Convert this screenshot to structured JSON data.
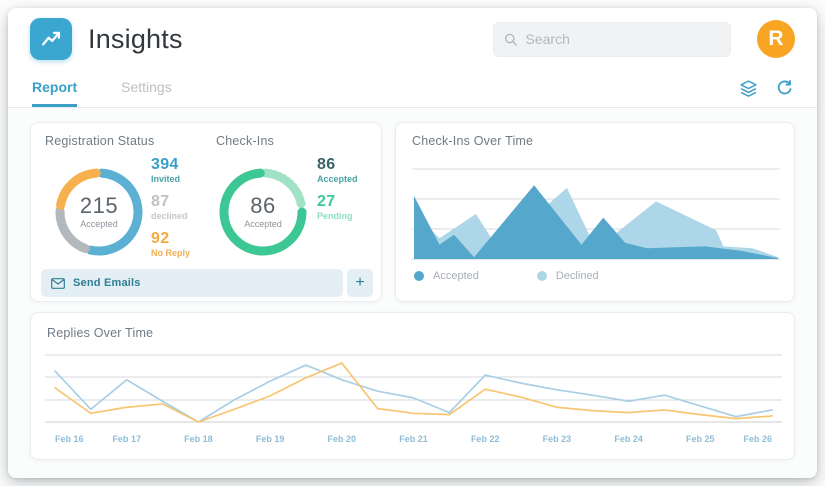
{
  "header": {
    "app_title": "Insights",
    "search_placeholder": "Search",
    "avatar_initial": "R",
    "brand_color": "#3ba6cf",
    "avatar_color": "#f8a524"
  },
  "tabs": {
    "items": [
      {
        "label": "Report",
        "active": true
      },
      {
        "label": "Settings",
        "active": false
      }
    ],
    "active_color": "#3b9fc7",
    "icons": [
      "layers-icon",
      "refresh-icon"
    ]
  },
  "registration": {
    "title": "Registration Status",
    "center_value": "215",
    "center_label": "Accepted",
    "donut": {
      "segments": [
        {
          "name": "Accepted",
          "value": 215,
          "color": "#5cb0d4"
        },
        {
          "name": "Declined",
          "value": 87,
          "color": "#b3b8bd"
        },
        {
          "name": "No Reply",
          "value": 92,
          "color": "#f6b04e"
        }
      ]
    },
    "stats": [
      {
        "value": "394",
        "label": "Invited",
        "value_color": "#3a9fc8",
        "label_color": "#4aa3a8"
      },
      {
        "value": "87",
        "label": "declined",
        "value_color": "#bdc2c7",
        "label_color": "#c3c8cc"
      },
      {
        "value": "92",
        "label": "No Reply",
        "value_color": "#f5a93f",
        "label_color": "#f0ae55"
      }
    ],
    "send_button_label": "Send Emails",
    "plus_button_label": "+"
  },
  "checkins": {
    "title": "Check-Ins",
    "center_value": "86",
    "center_label": "Accepted",
    "donut": {
      "segments": [
        {
          "name": "Pending",
          "value": 27,
          "color": "#9fe2c5",
          "dashed": true
        },
        {
          "name": "Accepted",
          "value": 86,
          "color": "#3cc795"
        }
      ]
    },
    "stats": [
      {
        "value": "86",
        "label": "Accepted",
        "value_color": "#3c6468",
        "label_color": "#4aa3a8"
      },
      {
        "value": "27",
        "label": "Pending",
        "value_color": "#3ec897",
        "label_color": "#8fdcbc"
      }
    ]
  },
  "chart_data": [
    {
      "type": "area",
      "title": "Check-Ins Over Time",
      "ylim": [
        0,
        100
      ],
      "grid": true,
      "legend_position": "bottom",
      "series": [
        {
          "name": "Accepted",
          "color": "#55a8cc",
          "points": [
            [
              0,
              70
            ],
            [
              0.07,
              16
            ],
            [
              0.11,
              27
            ],
            [
              0.165,
              2
            ],
            [
              0.33,
              82
            ],
            [
              0.46,
              16
            ],
            [
              0.52,
              46
            ],
            [
              0.58,
              18
            ],
            [
              0.64,
              12
            ],
            [
              0.72,
              13
            ],
            [
              0.8,
              14
            ],
            [
              0.9,
              9
            ],
            [
              1,
              1
            ]
          ]
        },
        {
          "name": "Declined",
          "color": "#aed6e9",
          "points": [
            [
              0,
              51
            ],
            [
              0.07,
              23
            ],
            [
              0.17,
              50
            ],
            [
              0.23,
              12
            ],
            [
              0.42,
              79
            ],
            [
              0.5,
              11
            ],
            [
              0.665,
              64
            ],
            [
              0.83,
              32
            ],
            [
              0.85,
              14
            ],
            [
              0.93,
              12
            ],
            [
              1,
              2
            ]
          ]
        }
      ]
    },
    {
      "type": "line",
      "title": "Replies Over Time",
      "categories": [
        "Feb 16",
        "Feb 17",
        "Feb 18",
        "Feb 19",
        "Feb 20",
        "Feb 21",
        "Feb 22",
        "Feb 23",
        "Feb 24",
        "Feb 25",
        "Feb 26"
      ],
      "points_per_category": 2,
      "ylim": [
        0,
        100
      ],
      "grid": true,
      "axis_label_color": "#8fbdd6",
      "series": [
        {
          "name": "replies-blue",
          "color": "#a8cfe4",
          "values": [
            76,
            19,
            63,
            31,
            0,
            33,
            61,
            85,
            63,
            46,
            36,
            14,
            70,
            58,
            48,
            40,
            31,
            40,
            24,
            8,
            18
          ]
        },
        {
          "name": "replies-orange",
          "color": "#f7c672",
          "values": [
            51,
            13,
            22,
            27,
            0,
            19,
            39,
            66,
            88,
            20,
            13,
            11,
            49,
            37,
            22,
            17,
            14,
            18,
            11,
            5,
            9
          ]
        }
      ]
    }
  ],
  "colors": {
    "gridline": "#d6dadd",
    "baseline": "#c9ced2",
    "send_button_bg": "#e4eff5",
    "send_button_text": "#2e7f91"
  }
}
